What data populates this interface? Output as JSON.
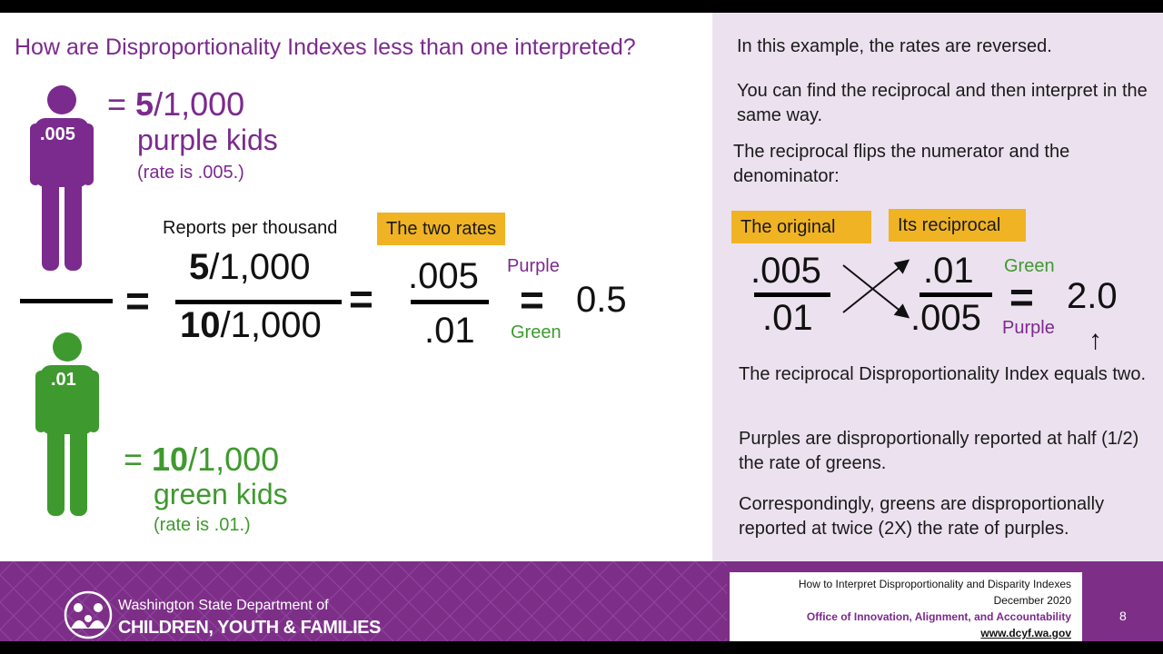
{
  "title": "How are Disproportionality Indexes less than one interpreted?",
  "purple_person": {
    "badge": ".005",
    "eq": "= ",
    "num": "5",
    "denom": "/1,000",
    "label": "purple kids",
    "rate": "(rate is .005.)"
  },
  "green_person": {
    "badge": ".01",
    "eq": "= ",
    "num": "10",
    "denom": "/1,000",
    "label": "green kids",
    "rate": "(rate is .01.)"
  },
  "equation": {
    "reports_label": "Reports per thousand",
    "two_rates_tag": "The two rates",
    "frac1_num_bold": "5",
    "frac1_num_rest": "/1,000",
    "frac1_den_bold": "10",
    "frac1_den_rest": "/1,000",
    "frac2_num": ".005",
    "frac2_den": ".01",
    "purple_label": "Purple",
    "green_label": "Green",
    "result": "0.5",
    "equals": "="
  },
  "right_panel": {
    "p1": "In this example, the rates are reversed.",
    "p2": "You can find the reciprocal and then interpret in the same way.",
    "p3": "The reciprocal flips the numerator and the denominator:",
    "tag_original": "The original",
    "tag_reciprocal": "Its reciprocal",
    "orig_num": ".005",
    "orig_den": ".01",
    "recip_num": ".01",
    "recip_den": ".005",
    "green_label": "Green",
    "purple_label": "Purple",
    "result": "2.0",
    "p4": "The reciprocal Disproportionality Index equals two.",
    "p5": "Purples are disproportionally reported at half (1/2) the rate of greens.",
    "p6": "Correspondingly, greens are disproportionally reported at twice (2X) the rate of purples."
  },
  "footer": {
    "org_line1": "Washington State Department of",
    "org_line2": "CHILDREN, YOUTH & FAMILIES",
    "info_title": "How to Interpret Disproportionality and Disparity Indexes",
    "info_date": "December 2020",
    "info_office": "Office of Innovation, Alignment, and Accountability",
    "info_url": "www.dcyf.wa.gov",
    "page_number": "8"
  },
  "colors": {
    "purple": "#7b2a8e",
    "green": "#3e9a2e",
    "tag_yellow": "#f0b323",
    "panel_bg": "#ece1ef",
    "footer_purple": "#7d2f88"
  }
}
